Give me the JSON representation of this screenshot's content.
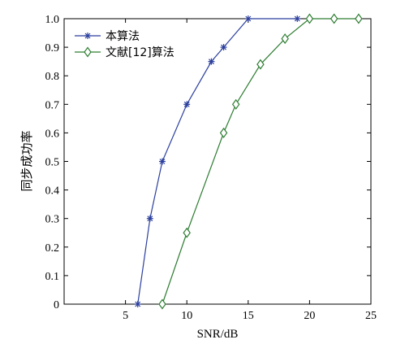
{
  "chart_data": {
    "type": "line",
    "xlabel": "SNR/dB",
    "ylabel": "同步成功率",
    "xlim": [
      0,
      25
    ],
    "ylim": [
      0,
      1
    ],
    "xticks": [
      5,
      10,
      15,
      20,
      25
    ],
    "yticks": [
      0,
      0.1,
      0.2,
      0.3,
      0.4,
      0.5,
      0.6,
      0.7,
      0.8,
      0.9,
      1.0
    ],
    "xtick_labels": [
      "5",
      "10",
      "15",
      "20",
      "25"
    ],
    "ytick_labels": [
      "0",
      "0.1",
      "0.2",
      "0.3",
      "0.4",
      "0.5",
      "0.6",
      "0.7",
      "0.8",
      "0.9",
      "1.0"
    ],
    "grid": false,
    "legend_position": "top-left",
    "series": [
      {
        "name": "本算法",
        "color": "#2b3f9e",
        "marker": "star",
        "x": [
          6,
          7,
          8,
          10,
          12,
          13,
          15,
          19
        ],
        "y": [
          0,
          0.3,
          0.5,
          0.7,
          0.85,
          0.9,
          1.0,
          1.0
        ]
      },
      {
        "name": "文献[12]算法",
        "color": "#2e7d32",
        "marker": "diamond",
        "x": [
          8,
          10,
          13,
          14,
          16,
          18,
          20,
          22,
          24
        ],
        "y": [
          0,
          0.25,
          0.6,
          0.7,
          0.84,
          0.93,
          1.0,
          1.0,
          1.0
        ]
      }
    ]
  }
}
